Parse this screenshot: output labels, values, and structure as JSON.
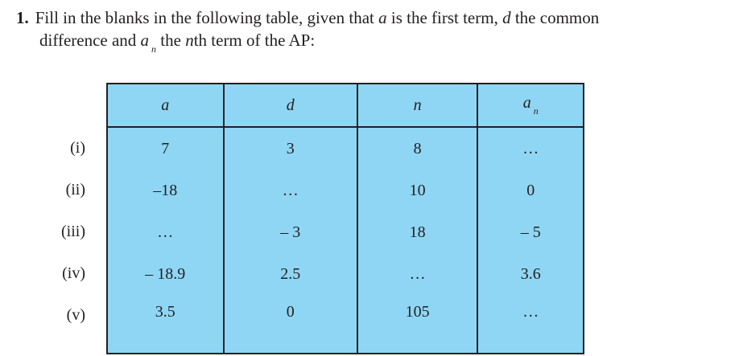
{
  "question": {
    "number": "1.",
    "line1_pre": "Fill in the blanks in the following table, given that ",
    "var_a": "a",
    "line1_mid": " is the first term, ",
    "var_d": "d",
    "line1_post": " the common",
    "line2_pre": "difference and ",
    "var_an": "a",
    "var_an_sub": "n",
    "line2_mid": " the ",
    "var_n": "n",
    "line2_post": "th term of the AP:"
  },
  "table": {
    "headers": [
      "a",
      "d",
      "n",
      "a"
    ],
    "header_an_sub": "n",
    "row_labels": [
      "(i)",
      "(ii)",
      "(iii)",
      "(iv)",
      "(v)"
    ],
    "rows": [
      [
        "7",
        "3",
        "8",
        "…"
      ],
      [
        "–18",
        "…",
        "10",
        "0"
      ],
      [
        "…",
        "– 3",
        "18",
        "– 5"
      ],
      [
        "– 18.9",
        "2.5",
        "…",
        "3.6"
      ],
      [
        "3.5",
        "0",
        "105",
        "…"
      ]
    ],
    "fill_color": "#8fd6f4"
  }
}
